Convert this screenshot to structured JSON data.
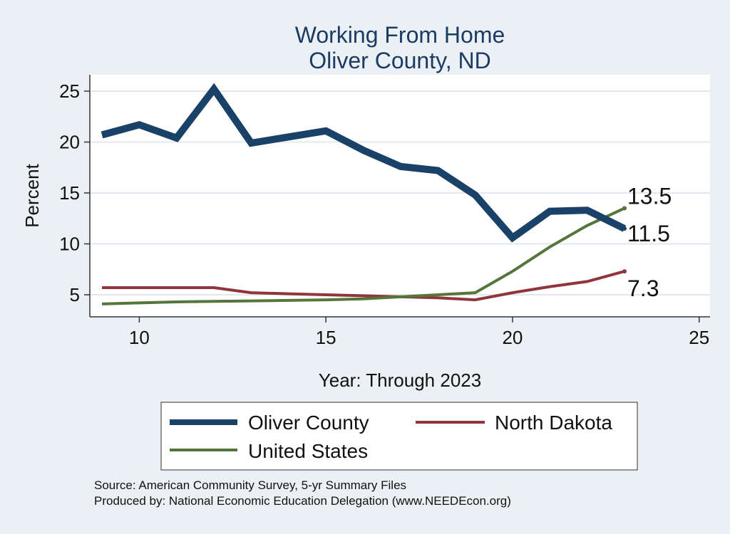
{
  "chart_data": {
    "type": "line",
    "title": [
      "Working From Home",
      "Oliver County, ND"
    ],
    "xlabel": "Year: Through 2023",
    "ylabel": "Percent",
    "xlim": [
      9,
      25
    ],
    "ylim": [
      3.9,
      26
    ],
    "xticks": [
      10,
      15,
      20,
      25
    ],
    "yticks": [
      5,
      10,
      15,
      20,
      25
    ],
    "grid": true,
    "legend_position": "bottom",
    "series": [
      {
        "name": "Oliver County",
        "color": "#1a4167",
        "x": [
          9,
          10,
          11,
          12,
          13,
          14,
          15,
          16,
          17,
          18,
          19,
          20,
          21,
          22,
          23
        ],
        "values": [
          20.7,
          21.7,
          20.4,
          25.2,
          19.9,
          20.5,
          21.1,
          19.2,
          17.6,
          17.2,
          14.8,
          10.6,
          13.2,
          13.3,
          11.5
        ],
        "end_label": "11.5"
      },
      {
        "name": "North Dakota",
        "color": "#90353b",
        "x": [
          9,
          10,
          11,
          12,
          13,
          14,
          15,
          16,
          17,
          18,
          19,
          20,
          21,
          22,
          23
        ],
        "values": [
          5.7,
          5.7,
          5.7,
          5.7,
          5.2,
          5.1,
          5.0,
          4.9,
          4.8,
          4.7,
          4.5,
          5.2,
          5.8,
          6.3,
          7.3
        ],
        "end_label": "7.3"
      },
      {
        "name": "United States",
        "color": "#55753b",
        "x": [
          9,
          10,
          11,
          12,
          13,
          14,
          15,
          16,
          17,
          18,
          19,
          20,
          21,
          22,
          23
        ],
        "values": [
          4.1,
          4.2,
          4.3,
          4.35,
          4.4,
          4.45,
          4.5,
          4.6,
          4.8,
          5.0,
          5.2,
          7.3,
          9.7,
          11.8,
          13.5
        ],
        "end_label": "13.5"
      }
    ],
    "notes": [
      "Source: American Community Survey, 5-yr Summary Files",
      "Produced by: National Economic Education Delegation (www.NEEDEcon.org)"
    ]
  }
}
